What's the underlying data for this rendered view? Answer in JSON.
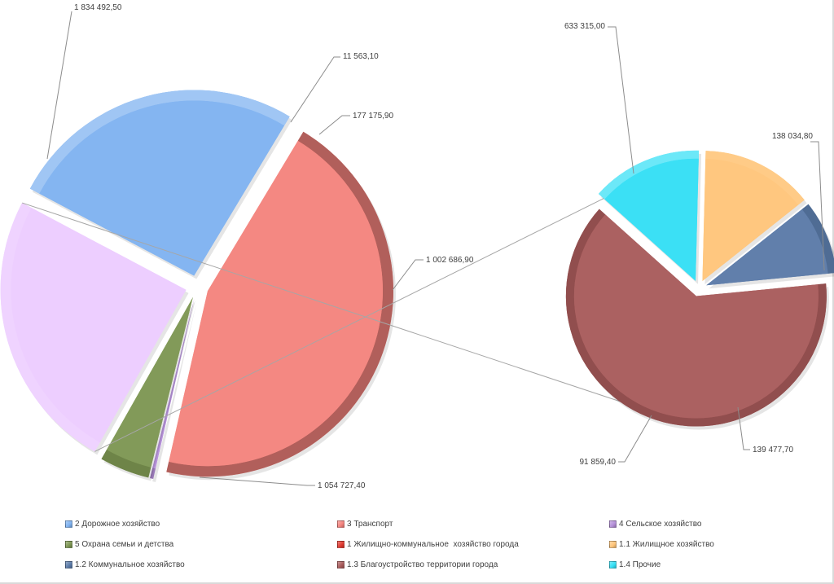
{
  "colors": {
    "dorozhnoe": "#7fb2f0",
    "transport": "#f4837d",
    "selskoe": "#b48fd8",
    "okhrana": "#7d9652",
    "zhkh": "#e0392f",
    "zhilishchnoe": "#ffc57a",
    "kommunalnoe": "#5a7aa8",
    "blagoustroystvo": "#a85a5a",
    "prochie": "#33dff5",
    "zhkh_group": "#ecccff"
  },
  "chart_data": {
    "type": "pie",
    "subtype": "pie-of-pie",
    "title": "",
    "main_pie": {
      "slices": [
        {
          "id": "transport",
          "legend_key": "transport",
          "value": 1834492.5,
          "label": "1 834 492,50"
        },
        {
          "id": "selskoe",
          "legend_key": "selskoe",
          "value": 11563.1,
          "label": "11 563,10"
        },
        {
          "id": "okhrana",
          "legend_key": "okhrana",
          "value": 177175.9,
          "label": "177 175,90"
        },
        {
          "id": "zhkh",
          "legend_key": "zhkh_group",
          "value": 1002686.9,
          "label": "1 002 686,90"
        },
        {
          "id": "dorozhnoe",
          "legend_key": "dorozhnoe",
          "value": 1054727.4,
          "label": "1 054 727,40"
        }
      ]
    },
    "secondary_pie": {
      "slices": [
        {
          "id": "blagoustroystvo",
          "legend_key": "blagoustroystvo",
          "value": 633315.0,
          "label": "633 315,00"
        },
        {
          "id": "prochie",
          "legend_key": "prochie",
          "value": 138034.8,
          "label": "138 034,80"
        },
        {
          "id": "zhilishchnoe",
          "legend_key": "zhilishchnoe",
          "value": 139477.7,
          "label": "139 477,70"
        },
        {
          "id": "kommunalnoe",
          "legend_key": "kommunalnoe",
          "value": 91859.4,
          "label": "91 859,40"
        }
      ]
    },
    "legend": [
      {
        "key": "dorozhnoe",
        "label": "2 Дорожное хозяйство"
      },
      {
        "key": "transport",
        "label": "3 Транспорт"
      },
      {
        "key": "selskoe",
        "label": "4 Сельское хозяйство"
      },
      {
        "key": "okhrana",
        "label": "5 Охрана семьи и детства"
      },
      {
        "key": "zhkh",
        "label": "1 Жилищно-коммунальное  хозяйство города"
      },
      {
        "key": "zhilishchnoe",
        "label": "1.1 Жилищное хозяйство"
      },
      {
        "key": "kommunalnoe",
        "label": "1.2 Коммунальное хозяйство"
      },
      {
        "key": "blagoustroystvo",
        "label": "1.3 Благоустройство территории города"
      },
      {
        "key": "prochie",
        "label": "1.4 Прочие"
      }
    ],
    "legend_placement": "bottom"
  }
}
